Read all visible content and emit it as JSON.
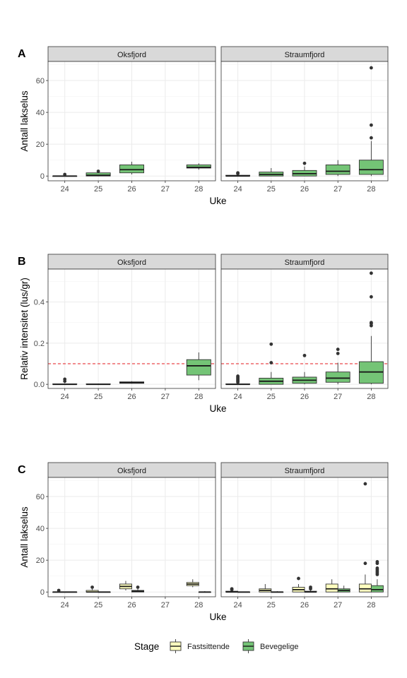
{
  "chart_data": {
    "type": "boxplot",
    "colors": {
      "Fastsittende": "#FFFFBF",
      "Bevegelige": "#74C476",
      "reference_line": "#E41A1C"
    },
    "legend": {
      "title": "Stage",
      "placement": "bottom",
      "entries": [
        "Fastsittende",
        "Bevegelige"
      ]
    },
    "panels": [
      {
        "tag": "A",
        "ylabel": "Antall lakselus",
        "xlabel": "Uke",
        "ylim": [
          -3,
          72
        ],
        "yticks": [
          0,
          20,
          40,
          60
        ],
        "reference_line": null,
        "facets": [
          {
            "name": "Oksfjord",
            "boxes": [
              {
                "week": "24",
                "stage": "Bevegelige",
                "q1": 0,
                "median": 0,
                "q3": 0,
                "lower": 0,
                "upper": 0,
                "outliers": [
                  1
                ]
              },
              {
                "week": "25",
                "stage": "Bevegelige",
                "q1": 0,
                "median": 0.5,
                "q3": 2,
                "lower": 0,
                "upper": 3,
                "outliers": [
                  3
                ]
              },
              {
                "week": "26",
                "stage": "Bevegelige",
                "q1": 2,
                "median": 4,
                "q3": 7,
                "lower": 1,
                "upper": 9,
                "outliers": []
              },
              {
                "week": "28",
                "stage": "Bevegelige",
                "q1": 5,
                "median": 5.5,
                "q3": 7,
                "lower": 4,
                "upper": 8,
                "outliers": []
              }
            ]
          },
          {
            "name": "Straumfjord",
            "boxes": [
              {
                "week": "24",
                "stage": "Bevegelige",
                "q1": 0,
                "median": 0,
                "q3": 0.5,
                "lower": 0,
                "upper": 1,
                "outliers": [
                  1.5,
                  2
                ]
              },
              {
                "week": "25",
                "stage": "Bevegelige",
                "q1": 0,
                "median": 1,
                "q3": 2.5,
                "lower": 0,
                "upper": 5,
                "outliers": []
              },
              {
                "week": "26",
                "stage": "Bevegelige",
                "q1": 0,
                "median": 1.5,
                "q3": 3.5,
                "lower": 0,
                "upper": 6,
                "outliers": [
                  8
                ]
              },
              {
                "week": "27",
                "stage": "Bevegelige",
                "q1": 1,
                "median": 3,
                "q3": 7,
                "lower": 0,
                "upper": 10,
                "outliers": []
              },
              {
                "week": "28",
                "stage": "Bevegelige",
                "q1": 1,
                "median": 4,
                "q3": 10,
                "lower": 0,
                "upper": 22,
                "outliers": [
                  24,
                  32,
                  68
                ]
              }
            ]
          }
        ]
      },
      {
        "tag": "B",
        "ylabel": "Relativ intensitet (lus/gr)",
        "xlabel": "Uke",
        "ylim": [
          -0.02,
          0.56
        ],
        "yticks": [
          0.0,
          0.2,
          0.4
        ],
        "reference_line": 0.1,
        "facets": [
          {
            "name": "Oksfjord",
            "boxes": [
              {
                "week": "24",
                "stage": "Bevegelige",
                "q1": 0,
                "median": 0,
                "q3": 0.002,
                "lower": 0,
                "upper": 0.005,
                "outliers": [
                  0.015,
                  0.025
                ]
              },
              {
                "week": "25",
                "stage": "Bevegelige",
                "q1": 0,
                "median": 0,
                "q3": 0.002,
                "lower": 0,
                "upper": 0.004,
                "outliers": []
              },
              {
                "week": "26",
                "stage": "Bevegelige",
                "q1": 0.005,
                "median": 0.008,
                "q3": 0.012,
                "lower": 0.003,
                "upper": 0.015,
                "outliers": []
              },
              {
                "week": "28",
                "stage": "Bevegelige",
                "q1": 0.045,
                "median": 0.09,
                "q3": 0.12,
                "lower": 0.02,
                "upper": 0.155,
                "outliers": []
              }
            ]
          },
          {
            "name": "Straumfjord",
            "boxes": [
              {
                "week": "24",
                "stage": "Bevegelige",
                "q1": 0,
                "median": 0,
                "q3": 0.002,
                "lower": 0,
                "upper": 0.005,
                "outliers": [
                  0.01,
                  0.015,
                  0.02,
                  0.025,
                  0.03,
                  0.035,
                  0.04
                ]
              },
              {
                "week": "25",
                "stage": "Bevegelige",
                "q1": 0,
                "median": 0.015,
                "q3": 0.03,
                "lower": 0,
                "upper": 0.06,
                "outliers": [
                  0.105,
                  0.195
                ]
              },
              {
                "week": "26",
                "stage": "Bevegelige",
                "q1": 0.005,
                "median": 0.02,
                "q3": 0.035,
                "lower": 0,
                "upper": 0.06,
                "outliers": [
                  0.14
                ]
              },
              {
                "week": "27",
                "stage": "Bevegelige",
                "q1": 0.01,
                "median": 0.03,
                "q3": 0.06,
                "lower": 0,
                "upper": 0.105,
                "outliers": [
                  0.15,
                  0.17
                ]
              },
              {
                "week": "28",
                "stage": "Bevegelige",
                "q1": 0.005,
                "median": 0.06,
                "q3": 0.11,
                "lower": 0,
                "upper": 0.235,
                "outliers": [
                  0.285,
                  0.295,
                  0.3,
                  0.425,
                  0.54
                ]
              }
            ]
          }
        ]
      },
      {
        "tag": "C",
        "ylabel": "Antall lakselus",
        "xlabel": "Uke",
        "ylim": [
          -3,
          72
        ],
        "yticks": [
          0,
          20,
          40,
          60
        ],
        "reference_line": null,
        "facets": [
          {
            "name": "Oksfjord",
            "boxes": [
              {
                "week": "24",
                "stage": "Fastsittende",
                "q1": 0,
                "median": 0,
                "q3": 0,
                "lower": 0,
                "upper": 0,
                "outliers": [
                  1
                ]
              },
              {
                "week": "24",
                "stage": "Bevegelige",
                "q1": 0,
                "median": 0,
                "q3": 0,
                "lower": 0,
                "upper": 0,
                "outliers": []
              },
              {
                "week": "25",
                "stage": "Fastsittende",
                "q1": 0,
                "median": 0,
                "q3": 1,
                "lower": 0,
                "upper": 2,
                "outliers": [
                  3
                ]
              },
              {
                "week": "25",
                "stage": "Bevegelige",
                "q1": 0,
                "median": 0,
                "q3": 0,
                "lower": 0,
                "upper": 0,
                "outliers": []
              },
              {
                "week": "26",
                "stage": "Fastsittende",
                "q1": 2,
                "median": 3.5,
                "q3": 5,
                "lower": 1,
                "upper": 7,
                "outliers": []
              },
              {
                "week": "26",
                "stage": "Bevegelige",
                "q1": 0,
                "median": 0.5,
                "q3": 1,
                "lower": 0,
                "upper": 2,
                "outliers": [
                  3
                ]
              },
              {
                "week": "28",
                "stage": "Fastsittende",
                "q1": 4,
                "median": 5,
                "q3": 6,
                "lower": 3,
                "upper": 8,
                "outliers": []
              },
              {
                "week": "28",
                "stage": "Bevegelige",
                "q1": 0,
                "median": 0,
                "q3": 0,
                "lower": 0,
                "upper": 0.5,
                "outliers": []
              }
            ]
          },
          {
            "name": "Straumfjord",
            "boxes": [
              {
                "week": "24",
                "stage": "Fastsittende",
                "q1": 0,
                "median": 0,
                "q3": 0.5,
                "lower": 0,
                "upper": 1,
                "outliers": [
                  1.5,
                  2
                ]
              },
              {
                "week": "24",
                "stage": "Bevegelige",
                "q1": 0,
                "median": 0,
                "q3": 0,
                "lower": 0,
                "upper": 0,
                "outliers": []
              },
              {
                "week": "25",
                "stage": "Fastsittende",
                "q1": 0,
                "median": 1,
                "q3": 2,
                "lower": 0,
                "upper": 5,
                "outliers": []
              },
              {
                "week": "25",
                "stage": "Bevegelige",
                "q1": 0,
                "median": 0,
                "q3": 0,
                "lower": 0,
                "upper": 0.5,
                "outliers": []
              },
              {
                "week": "26",
                "stage": "Fastsittende",
                "q1": 0,
                "median": 1.5,
                "q3": 3,
                "lower": 0,
                "upper": 5,
                "outliers": [
                  8.5
                ]
              },
              {
                "week": "26",
                "stage": "Bevegelige",
                "q1": 0,
                "median": 0,
                "q3": 0.5,
                "lower": 0,
                "upper": 1,
                "outliers": [
                  2,
                  3
                ]
              },
              {
                "week": "27",
                "stage": "Fastsittende",
                "q1": 0,
                "median": 2,
                "q3": 5,
                "lower": 0,
                "upper": 8,
                "outliers": []
              },
              {
                "week": "27",
                "stage": "Bevegelige",
                "q1": 0,
                "median": 1,
                "q3": 2,
                "lower": 0,
                "upper": 4,
                "outliers": []
              },
              {
                "week": "28",
                "stage": "Fastsittende",
                "q1": 0,
                "median": 2,
                "q3": 5,
                "lower": 0,
                "upper": 11,
                "outliers": [
                  18,
                  68
                ]
              },
              {
                "week": "28",
                "stage": "Bevegelige",
                "q1": 0,
                "median": 1.5,
                "q3": 4,
                "lower": 0,
                "upper": 8,
                "outliers": [
                  11,
                  12,
                  13,
                  14,
                  15,
                  18,
                  19
                ]
              }
            ]
          }
        ]
      }
    ],
    "x_categories": [
      "24",
      "25",
      "26",
      "27",
      "28"
    ]
  }
}
